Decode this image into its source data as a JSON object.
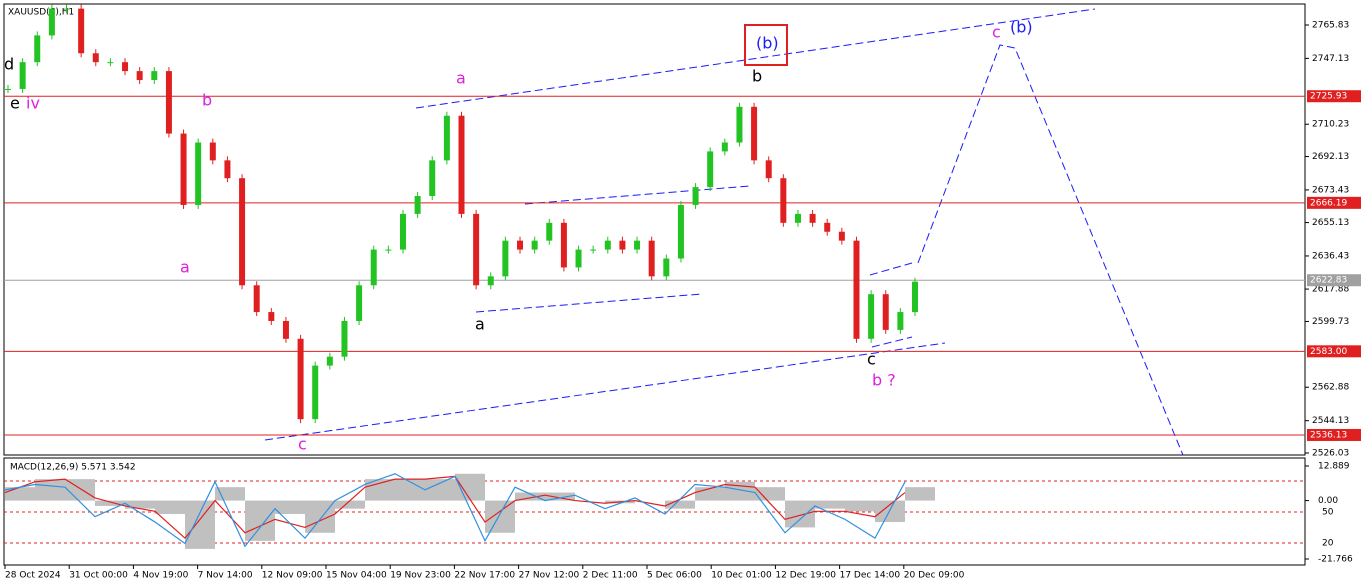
{
  "chart_data": {
    "type": "candlestick",
    "title": "XAUUSD(€),H1",
    "ylim": [
      2526.03,
      2765.83
    ],
    "yticks": [
      2765.83,
      2747.13,
      2710.23,
      2692.13,
      2673.43,
      2655.13,
      2636.43,
      2617.88,
      2599.73,
      2562.88,
      2544.13,
      2526.03
    ],
    "up_color": "#22c322",
    "down_color": "#e02020",
    "values": [
      2730,
      2745,
      2760,
      2775,
      2775,
      2750,
      2745,
      2745,
      2740,
      2735,
      2740,
      2705,
      2665,
      2700,
      2690,
      2680,
      2620,
      2605,
      2600,
      2590,
      2545,
      2575,
      2580,
      2600,
      2620,
      2640,
      2640,
      2660,
      2670,
      2690,
      2715,
      2660,
      2620,
      2625,
      2645,
      2640,
      2645,
      2655,
      2630,
      2640,
      2640,
      2645,
      2640,
      2645,
      2625,
      2635,
      2665,
      2675,
      2695,
      2700,
      2720,
      2690,
      2680,
      2655,
      2660,
      2655,
      2650,
      2645,
      2590,
      2615,
      2595,
      2605,
      2622
    ],
    "levels": [
      {
        "value": 2725.93,
        "label": "2725.93",
        "color": "#e02020"
      },
      {
        "value": 2666.19,
        "label": "2666.19",
        "color": "#e02020"
      },
      {
        "value": 2583.0,
        "label": "2583.00",
        "color": "#e02020"
      },
      {
        "value": 2536.13,
        "label": "2536.13",
        "color": "#e02020"
      },
      {
        "value": 2622.83,
        "label": "2622.83",
        "color": "#a0a0a0"
      }
    ],
    "time_labels": [
      "28 Oct 2024",
      "31 Oct 00:00",
      "4 Nov 19:00",
      "7 Nov 14:00",
      "12 Nov 09:00",
      "15 Nov 04:00",
      "19 Nov 23:00",
      "22 Nov 17:00",
      "27 Nov 12:00",
      "2 Dec 11:00",
      "5 Dec 06:00",
      "10 Dec 01:00",
      "12 Dec 19:00",
      "17 Dec 14:00",
      "20 Dec 09:00"
    ],
    "annotations": [
      {
        "text": "d",
        "color": "#000000"
      },
      {
        "text": "e",
        "color": "#000000"
      },
      {
        "text": "iv",
        "color": "#e020e0"
      },
      {
        "text": "b",
        "color": "#e020e0"
      },
      {
        "text": "a",
        "color": "#e020e0"
      },
      {
        "text": "c",
        "color": "#e020e0"
      },
      {
        "text": "a",
        "color": "#e020e0"
      },
      {
        "text": "a",
        "color": "#000000"
      },
      {
        "text": "(b)",
        "color": "#1a1aff"
      },
      {
        "text": "b",
        "color": "#000000"
      },
      {
        "text": "c",
        "color": "#000000"
      },
      {
        "text": "b ?",
        "color": "#e020e0"
      },
      {
        "text": "c",
        "color": "#e020e0"
      },
      {
        "text": "(b)",
        "color": "#1a1aff"
      }
    ],
    "macd": {
      "title": "MACD(12,26,9) 5.571 3.542",
      "ylim": [
        -21.766,
        12.889
      ],
      "yticks": [
        12.889,
        {
          "value": 0,
          "label": "0.00"
        },
        -21.766
      ],
      "level_labels": [
        "50",
        "20"
      ],
      "series": [
        {
          "name": "histogram",
          "color": "#c0c0c0",
          "values": [
            5,
            8,
            8,
            -2,
            -3,
            -5,
            -18,
            5,
            -15,
            -5,
            -12,
            -3,
            8,
            8,
            8,
            10,
            -12,
            3,
            3,
            0,
            -1,
            0,
            -3,
            5,
            7,
            5,
            -10,
            -3,
            -4,
            -8,
            5
          ]
        },
        {
          "name": "signal",
          "color": "#e02020",
          "values": [
            3,
            7,
            8,
            1,
            -2,
            -4,
            -14,
            0,
            -12,
            -7,
            -10,
            -5,
            5,
            8,
            8,
            9,
            -8,
            0,
            2,
            0,
            -1,
            0,
            -2,
            3,
            6,
            5,
            -7,
            -4,
            -4,
            -6,
            3
          ]
        },
        {
          "name": "main",
          "color": "#3090e0",
          "values": [
            4,
            6,
            5,
            -6,
            -1,
            -8,
            -16,
            7,
            -17,
            -3,
            -14,
            0,
            6,
            10,
            4,
            9,
            -15,
            5,
            0,
            2,
            -3,
            1,
            -5,
            6,
            5,
            3,
            -12,
            -2,
            -7,
            -14,
            7
          ]
        }
      ]
    }
  }
}
